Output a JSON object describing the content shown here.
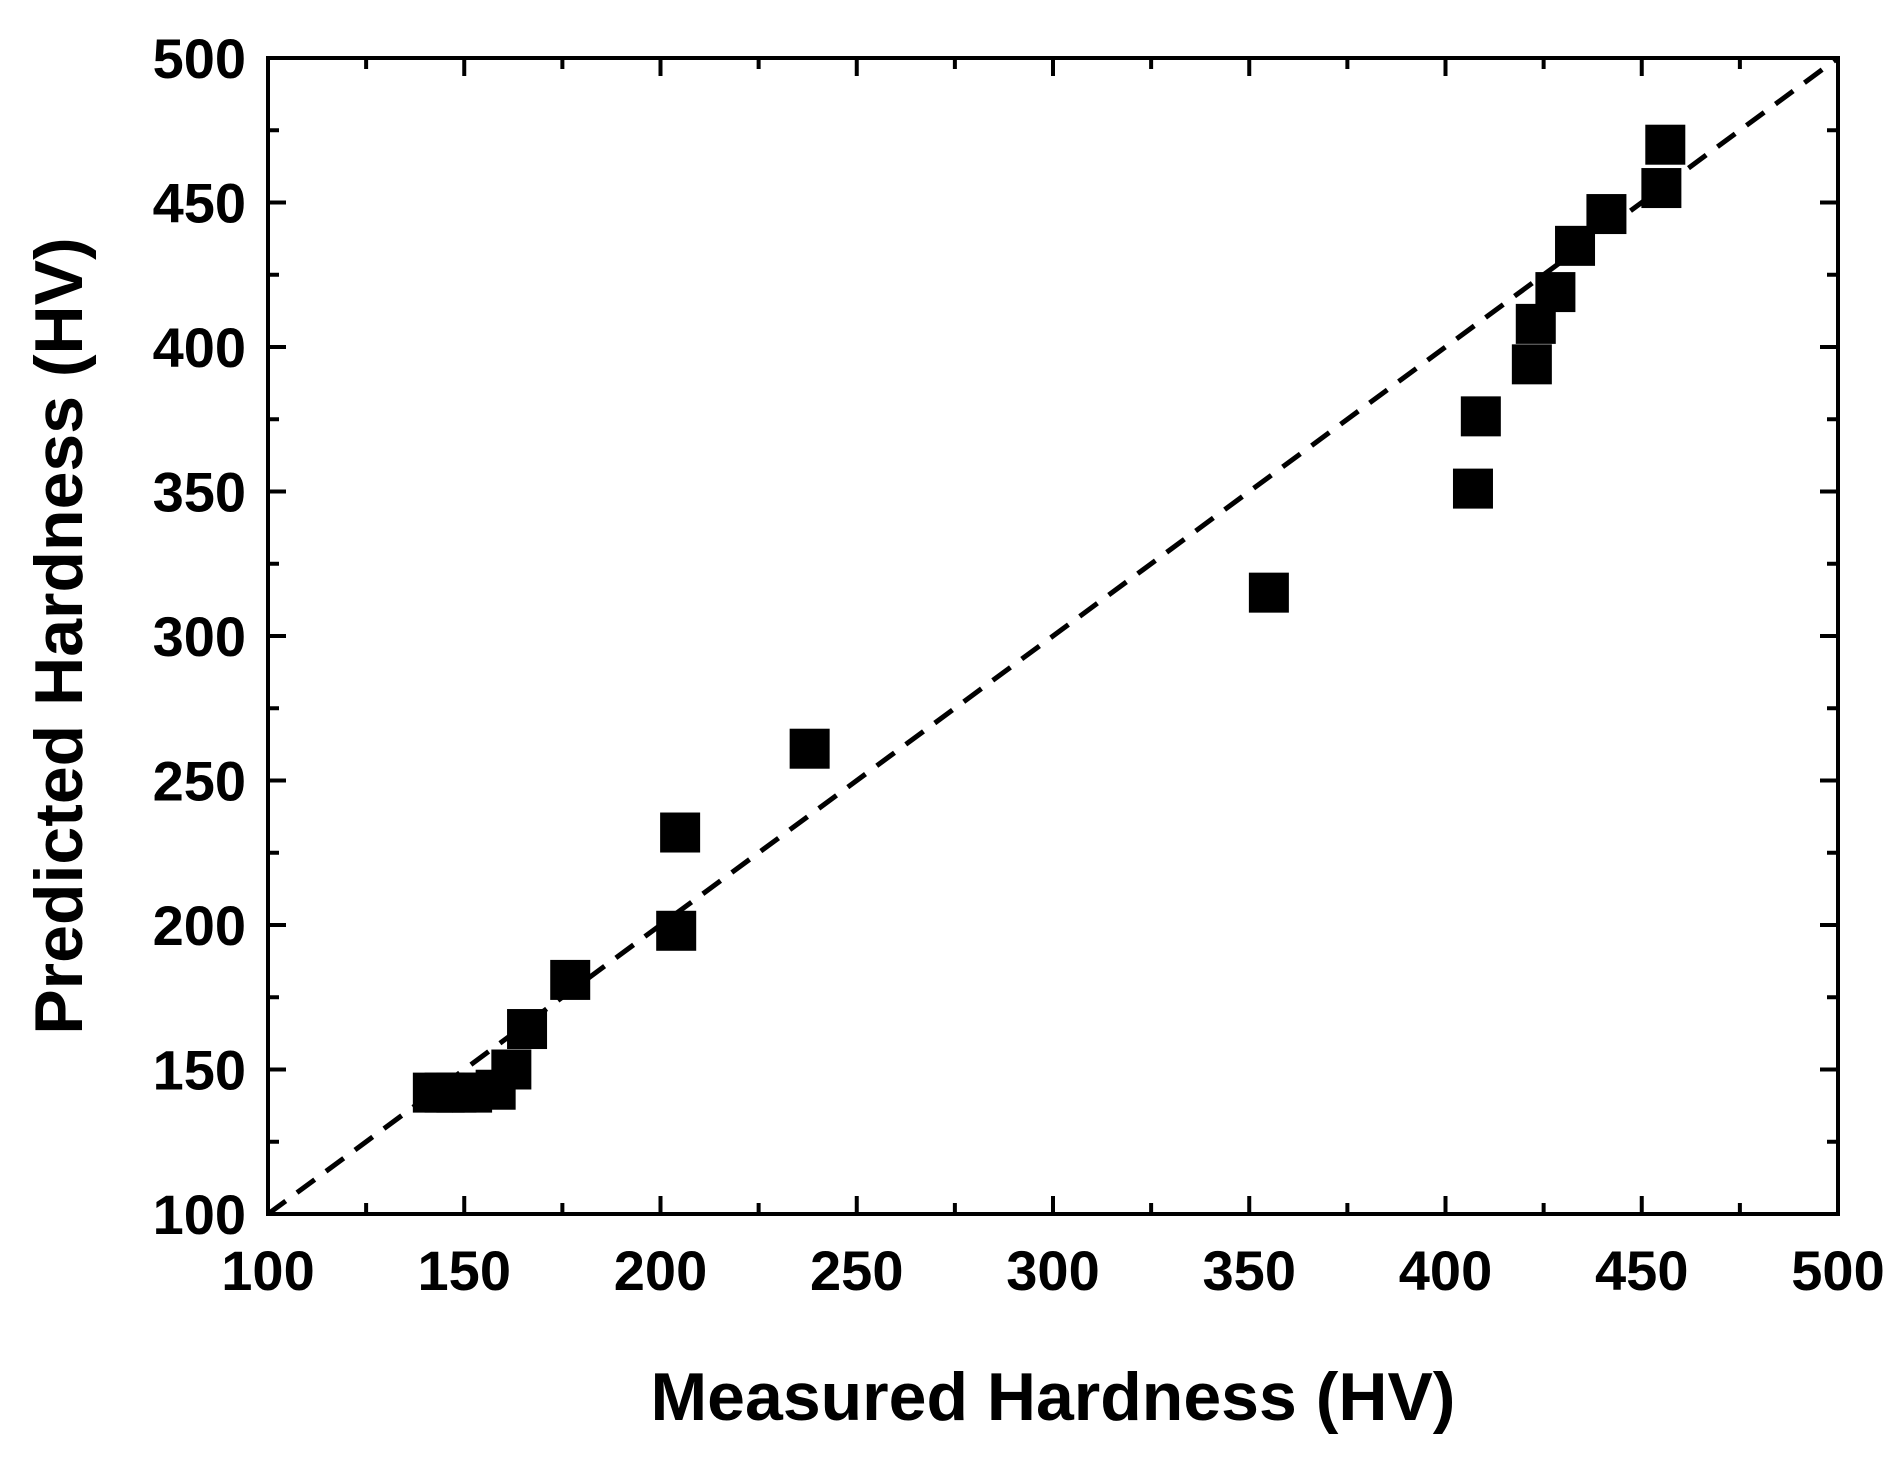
{
  "chart_data": {
    "type": "scatter",
    "xlabel": "Measured Hardness (HV)",
    "ylabel": "Predicted Hardness (HV)",
    "xlim": [
      100,
      500
    ],
    "ylim": [
      100,
      500
    ],
    "xticks": [
      "100",
      "150",
      "200",
      "250",
      "300",
      "350",
      "400",
      "450",
      "500"
    ],
    "yticks": [
      "100",
      "150",
      "200",
      "250",
      "300",
      "350",
      "400",
      "450",
      "500"
    ],
    "grid": false,
    "legend": "none",
    "reference_line": {
      "style": "dashed",
      "from": [
        100,
        100
      ],
      "to": [
        500,
        500
      ],
      "color": "#000000"
    },
    "marker": {
      "shape": "square",
      "color": "#000000"
    },
    "series": [
      {
        "points": [
          {
            "x": 142,
            "y": 142
          },
          {
            "x": 145,
            "y": 142
          },
          {
            "x": 148,
            "y": 142
          },
          {
            "x": 152,
            "y": 142
          },
          {
            "x": 158,
            "y": 143
          },
          {
            "x": 162,
            "y": 150
          },
          {
            "x": 166,
            "y": 164
          },
          {
            "x": 177,
            "y": 181
          },
          {
            "x": 204,
            "y": 198
          },
          {
            "x": 205,
            "y": 232
          },
          {
            "x": 238,
            "y": 261
          },
          {
            "x": 355,
            "y": 315
          },
          {
            "x": 407,
            "y": 351
          },
          {
            "x": 409,
            "y": 376
          },
          {
            "x": 422,
            "y": 394
          },
          {
            "x": 423,
            "y": 408
          },
          {
            "x": 428,
            "y": 419
          },
          {
            "x": 433,
            "y": 435
          },
          {
            "x": 441,
            "y": 446
          },
          {
            "x": 455,
            "y": 455
          },
          {
            "x": 456,
            "y": 470
          }
        ]
      }
    ]
  }
}
